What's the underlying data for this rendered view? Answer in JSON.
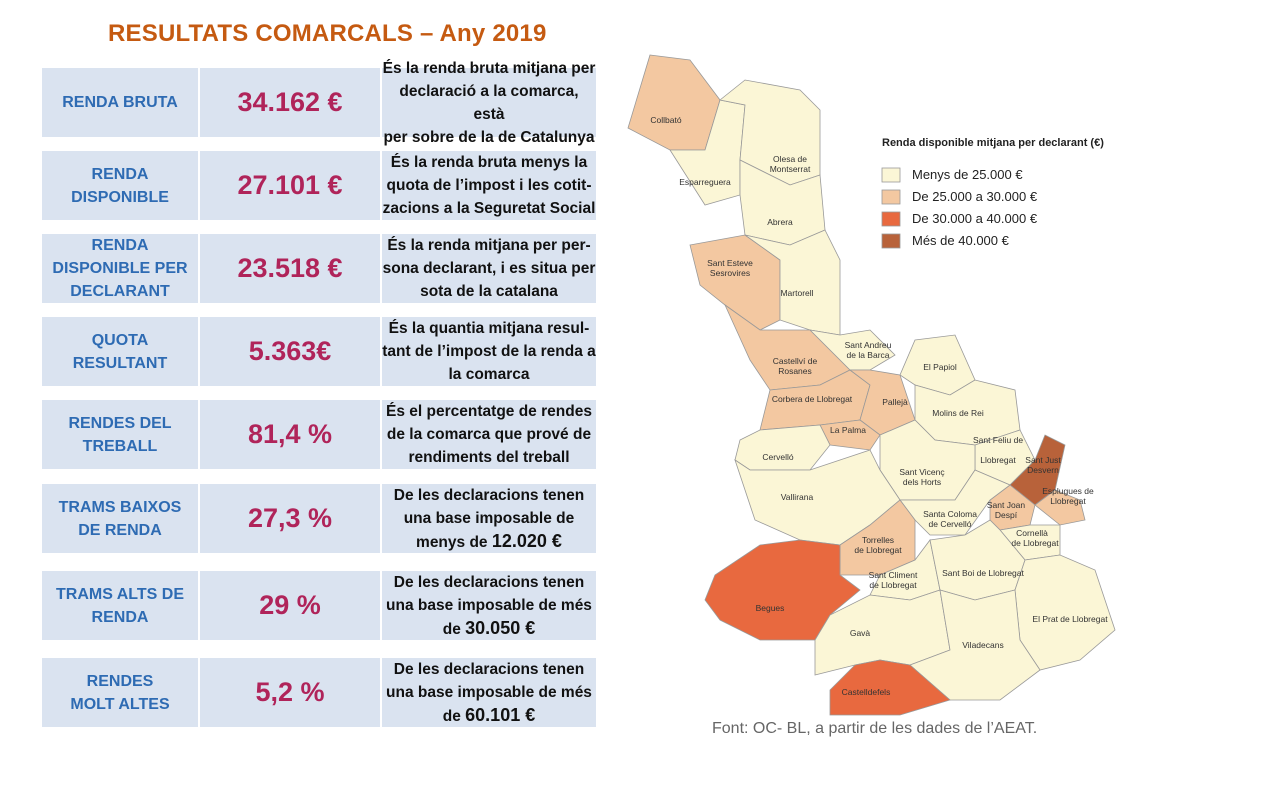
{
  "title": "RESULTATS COMARCALS – Any 2019",
  "rows": [
    {
      "label": [
        "RENDA BRUTA"
      ],
      "value": "34.162 €",
      "desc": [
        "És la renda bruta mitjana per",
        "declaració a la comarca, està",
        "per sobre de la de Catalunya"
      ],
      "desc_bold": ""
    },
    {
      "label": [
        "RENDA",
        "DISPONIBLE"
      ],
      "value": "27.101 €",
      "desc": [
        "És la renda bruta menys la",
        "quota de l’impost i les cotit-",
        "zacions a la Seguretat Social"
      ],
      "desc_bold": ""
    },
    {
      "label": [
        "RENDA",
        "DISPONIBLE PER",
        "DECLARANT"
      ],
      "value": "23.518 €",
      "desc": [
        "És la renda mitjana per per-",
        "sona declarant,  i es situa per",
        "sota de la catalana"
      ],
      "desc_bold": ""
    },
    {
      "label": [
        "QUOTA",
        "RESULTANT"
      ],
      "value": "5.363€",
      "desc": [
        "És la quantia mitjana resul-",
        "tant de l’impost de la renda a",
        "la comarca"
      ],
      "desc_bold": ""
    },
    {
      "label": [
        "RENDES DEL",
        "TREBALL"
      ],
      "value": "81,4 %",
      "desc": [
        "És el percentatge de rendes",
        "de la comarca que prové de",
        "rendiments del treball"
      ],
      "desc_bold": ""
    },
    {
      "label": [
        "TRAMS BAIXOS",
        "DE RENDA"
      ],
      "value": "27,3 %",
      "desc": [
        "De les declaracions tenen",
        "una base imposable de",
        "menys de"
      ],
      "desc_bold": "12.020 €"
    },
    {
      "label": [
        "TRAMS ALTS DE",
        "RENDA"
      ],
      "value": "29 %",
      "desc": [
        "De les declaracions tenen",
        "una base imposable de més",
        "de"
      ],
      "desc_bold": "30.050 €"
    },
    {
      "label": [
        "RENDES",
        "MOLT ALTES"
      ],
      "value": "5,2 %",
      "desc": [
        "De les declaracions tenen",
        "una base imposable de més",
        "de"
      ],
      "desc_bold": "60.101 €"
    }
  ],
  "map": {
    "legend_title": "Renda disponible mitjana per declarant (€)",
    "legend": [
      {
        "label": "Menys de 25.000 €",
        "color": "#fbf6d6"
      },
      {
        "label": "De 25.000 a 30.000 €",
        "color": "#f3c8a1"
      },
      {
        "label": "De 30.000 a 40.000 €",
        "color": "#e8693f"
      },
      {
        "label": "Més de 40.000 €",
        "color": "#b8623a"
      }
    ],
    "municipalities": [
      "Collbató",
      "Olesa de",
      "Montserrat",
      "Esparreguera",
      "Abrera",
      "Sant Esteve",
      "Sesrovires",
      "Martorell",
      "Sant Andreu",
      "de la Barca",
      "Castellví de",
      "Rosanes",
      "El Papiol",
      "Corbera de Llobregat",
      "Pallejà",
      "Molins de Rei",
      "La Palma",
      "Sant Feliu de",
      "Llobregat",
      "Sant Just",
      "Desvern",
      "Cervelló",
      "Sant Vicenç",
      "dels Horts",
      "Esplugues de",
      "Llobregat",
      "Vallirana",
      "Sant Joan",
      "Despí",
      "Santa Coloma",
      "de Cervelló",
      "Cornellà",
      "de Llobregat",
      "Torrelles",
      "de Llobregat",
      "Sant Climent",
      "de Llobregat",
      "Sant Boi de Llobregat",
      "Begues",
      "El Prat de Llobregat",
      "Gavà",
      "Viladecans",
      "Castelldefels"
    ]
  },
  "source": "Font: OC- BL, a partir de les dades de l’AEAT."
}
